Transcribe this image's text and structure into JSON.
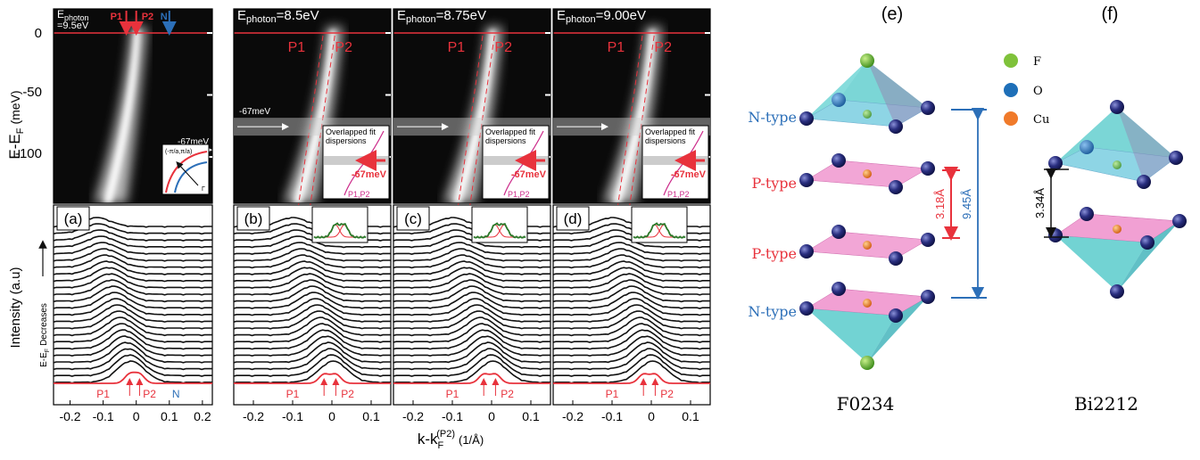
{
  "left": {
    "y_ticks": [
      "0",
      "-50",
      "-100"
    ],
    "y_axis_label": "E-E",
    "y_axis_sub": "F",
    "y_axis_unit": "(meV)",
    "intensity_label": "Intensity (a.u)",
    "decreases_label": "E-E",
    "decreases_sub": "F",
    "decreases_rest": "Decreases",
    "x_axis_label": "k-k",
    "x_axis_sub": "F",
    "x_axis_sup": "(P2)",
    "x_axis_unit": "(1/Å)",
    "panels": [
      {
        "tag": "(a)",
        "photon_main": "E",
        "photon_sub": "photon",
        "photon_value": "=9.5eV",
        "arrows": [
          "P1",
          "P2",
          "N"
        ],
        "gap_label": "-67meV",
        "inset_label": "(-π/a,π/a)",
        "inset_gamma": "Γ",
        "edc_labels": [
          "P1",
          "P2",
          "N"
        ],
        "x_ticks": [
          "-0.2",
          "-0.1",
          "0",
          "0.1",
          "0.2"
        ]
      },
      {
        "tag": "(b)",
        "photon_main": "E",
        "photon_sub": "photon",
        "photon_value": "=8.5eV",
        "line_labels": [
          "P1",
          "P2"
        ],
        "gap_label": "-67meV",
        "inset_title_1": "Overlapped fit",
        "inset_title_2": "dispersions",
        "inset_gap": "-67meV",
        "inset_legend": "P1,P2",
        "edc_labels": [
          "P1",
          "P2"
        ],
        "x_ticks": [
          "-0.2",
          "-0.1",
          "0",
          "0.1"
        ]
      },
      {
        "tag": "(c)",
        "photon_main": "E",
        "photon_sub": "photon",
        "photon_value": "=8.75eV",
        "line_labels": [
          "P1",
          "P2"
        ],
        "inset_title_1": "Overlapped fit",
        "inset_title_2": "dispersions",
        "inset_gap": "-67meV",
        "inset_legend": "P1,P2",
        "edc_labels": [
          "P1",
          "P2"
        ],
        "x_ticks": [
          "-0.2",
          "-0.1",
          "0",
          "0.1"
        ]
      },
      {
        "tag": "(d)",
        "photon_main": "E",
        "photon_sub": "photon",
        "photon_value": "=9.00eV",
        "line_labels": [
          "P1",
          "P2"
        ],
        "inset_title_1": "Overlapped fit",
        "inset_title_2": "dispersions",
        "inset_gap": "-67meV",
        "inset_legend": "P1,P2",
        "edc_labels": [
          "P1",
          "P2"
        ],
        "x_ticks": [
          "-0.2",
          "-0.1",
          "0",
          "0.1"
        ]
      }
    ]
  },
  "right": {
    "e": {
      "tag": "(e)",
      "layer_labels": [
        "N-type",
        "P-type",
        "P-type",
        "N-type"
      ],
      "dim_small": "3.18Å",
      "dim_large": "9.45Å",
      "caption": "F0234"
    },
    "f": {
      "tag": "(f)",
      "dim": "3.34Å",
      "caption": "Bi2212"
    },
    "legend": [
      {
        "label": "F",
        "color": "#7fc23a"
      },
      {
        "label": "O",
        "color": "#1e6fb8"
      },
      {
        "label": "Cu",
        "color": "#f07a2a"
      }
    ]
  },
  "colors": {
    "red": "#e8323c",
    "blue": "#2c6fb8",
    "magenta": "#cc2a8a",
    "cyan": "#4fc8c8",
    "pink": "#ee88c8",
    "atom": "#2a2f80"
  }
}
